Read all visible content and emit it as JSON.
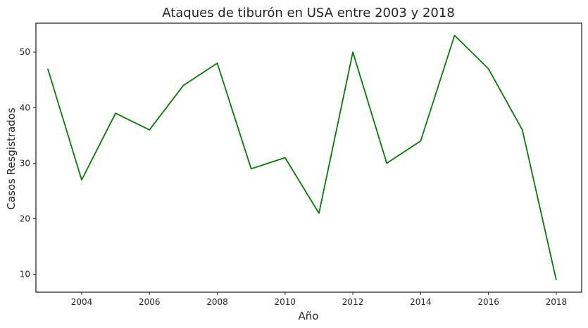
{
  "chart_data": {
    "type": "line",
    "title": "Ataques de tiburón en USA entre 2003 y 2018",
    "xlabel": "Año",
    "ylabel": "Casos Resgistrados",
    "x": [
      2003,
      2004,
      2005,
      2006,
      2007,
      2008,
      2009,
      2010,
      2011,
      2012,
      2013,
      2014,
      2015,
      2016,
      2017,
      2018
    ],
    "series": [
      {
        "values": [
          47,
          27,
          39,
          36,
          44,
          48,
          29,
          31,
          21,
          50,
          30,
          34,
          53,
          47,
          36,
          9
        ]
      }
    ],
    "xlim": [
      2002.65,
      2018.75
    ],
    "ylim": [
      6.8,
      55.2
    ],
    "xticks": [
      2004,
      2006,
      2008,
      2010,
      2012,
      2014,
      2016,
      2018
    ],
    "yticks": [
      10,
      20,
      30,
      40,
      50
    ],
    "line_color": "#008000",
    "grid": false,
    "legend": "none"
  }
}
